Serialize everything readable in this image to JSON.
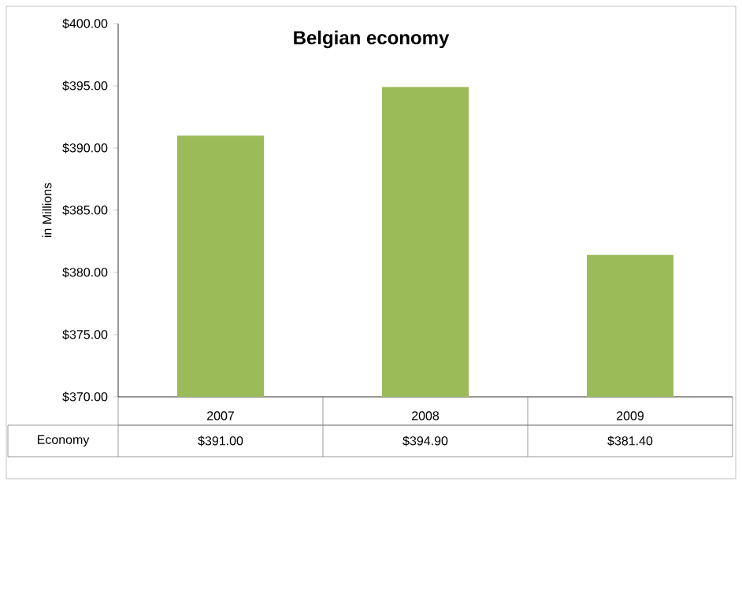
{
  "chart_data": {
    "type": "bar",
    "title": "Belgian economy",
    "ylabel": "in Millions",
    "categories": [
      "2007",
      "2008",
      "2009"
    ],
    "series": [
      {
        "name": "Economy",
        "color": "#9bbb59",
        "values": [
          391.0,
          394.9,
          381.4
        ],
        "value_labels": [
          "$391.00",
          "$394.90",
          "$381.40"
        ]
      }
    ],
    "ylim": [
      370,
      400
    ],
    "yticks": [
      {
        "value": 370,
        "label": "$370.00"
      },
      {
        "value": 375,
        "label": "$375.00"
      },
      {
        "value": 380,
        "label": "$380.00"
      },
      {
        "value": 385,
        "label": "$385.00"
      },
      {
        "value": 390,
        "label": "$390.00"
      },
      {
        "value": 395,
        "label": "$395.00"
      },
      {
        "value": 400,
        "label": "$400.00"
      }
    ]
  }
}
